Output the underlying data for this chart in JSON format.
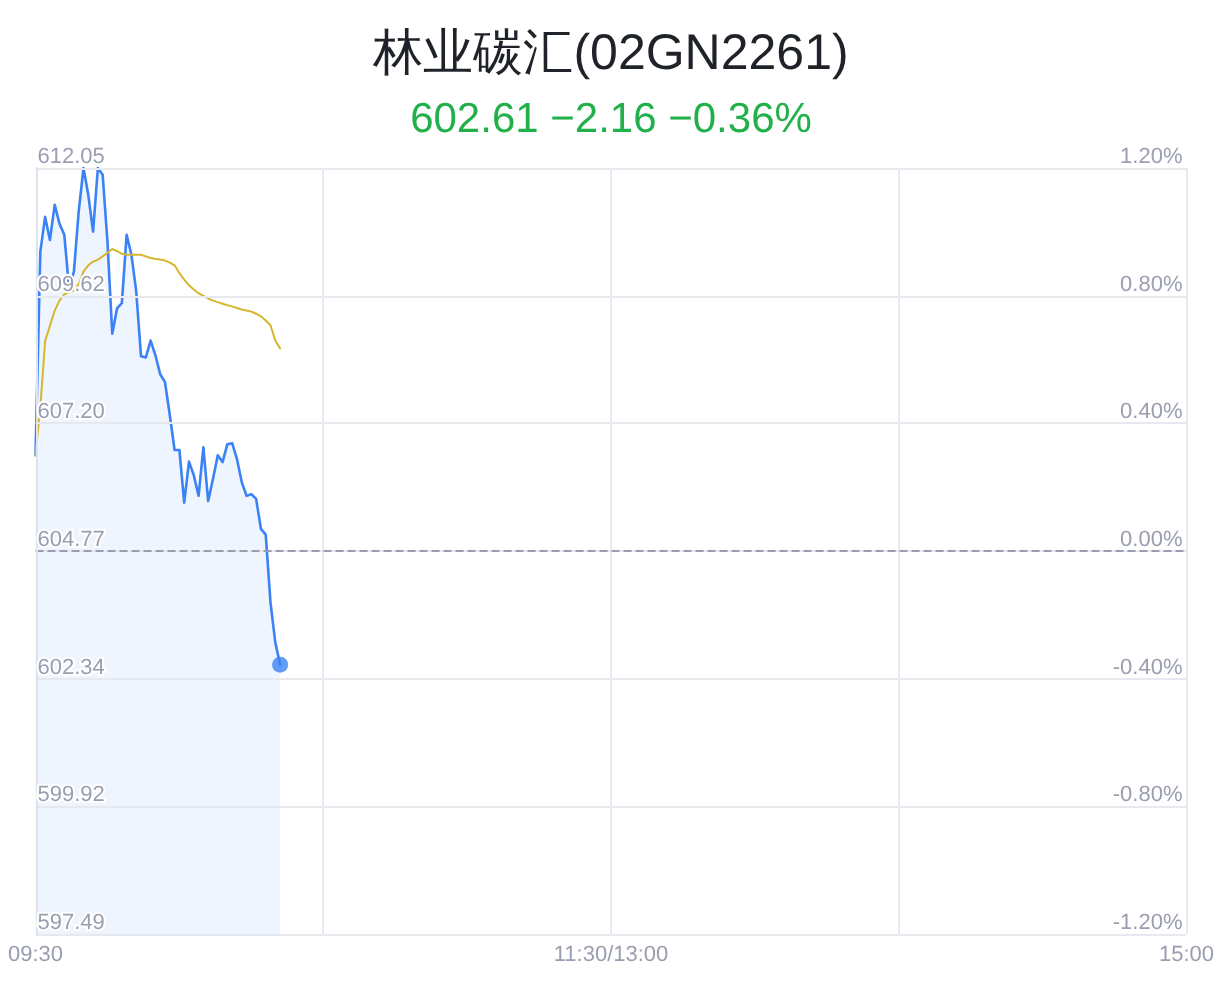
{
  "chart_data": {
    "type": "area",
    "title": "林业碳汇(02GN2261)",
    "subtitle": "602.61 −2.16 −0.36%",
    "categories": [
      "09:30",
      null,
      null,
      null,
      null,
      null,
      null,
      null,
      null,
      null,
      null,
      null,
      null,
      null,
      null,
      null,
      null,
      null,
      null,
      null,
      null,
      null,
      null,
      null,
      null,
      null,
      null,
      null,
      null,
      null,
      null,
      null,
      null,
      null,
      null,
      null,
      null,
      null,
      null,
      null,
      null,
      null,
      null,
      null,
      null,
      null,
      null,
      null,
      null,
      null,
      null,
      null,
      null,
      null,
      null,
      null,
      null,
      null,
      null,
      null,
      null,
      null,
      null,
      null,
      null,
      null,
      null,
      null,
      null,
      null,
      null,
      null,
      null,
      null,
      null,
      null,
      null,
      null,
      null,
      null,
      null,
      null,
      null,
      null,
      null,
      null,
      null,
      null,
      null,
      null,
      null,
      null,
      null,
      null,
      null,
      null,
      null,
      null,
      null,
      null,
      null,
      null,
      null,
      null,
      null,
      null,
      null,
      null,
      null,
      null,
      null,
      null,
      null,
      null,
      null,
      null,
      null,
      null,
      null,
      null,
      "11:30/13:00",
      null,
      null,
      null,
      null,
      null,
      null,
      null,
      null,
      null,
      null,
      null,
      null,
      null,
      null,
      null,
      null,
      null,
      null,
      null,
      null,
      null,
      null,
      null,
      null,
      null,
      null,
      null,
      null,
      null,
      null,
      null,
      null,
      null,
      null,
      null,
      null,
      null,
      null,
      null,
      null,
      null,
      null,
      null,
      null,
      null,
      null,
      null,
      null,
      null,
      null,
      null,
      null,
      null,
      null,
      null,
      null,
      null,
      null,
      null,
      null,
      null,
      null,
      null,
      null,
      null,
      null,
      null,
      null,
      null,
      null,
      null,
      null,
      null,
      null,
      null,
      null,
      null,
      null,
      null,
      null,
      null,
      null,
      null,
      null,
      null,
      null,
      null,
      null,
      null,
      null,
      null,
      null,
      null,
      null,
      null,
      null,
      null,
      null,
      null,
      null,
      null,
      null,
      null,
      null,
      null,
      null,
      null,
      null,
      null,
      null,
      null,
      null,
      null,
      null,
      null,
      null,
      null,
      null,
      null,
      "15:00"
    ],
    "ylim": [
      597.49,
      612.05
    ],
    "yticks": [
      597.49,
      599.92,
      602.34,
      604.77,
      {
        "value": 607.2,
        "label": "607.20"
      },
      609.62,
      612.05
    ],
    "y2lim": [
      -1.2,
      1.2
    ],
    "y2ticks": [
      {
        "value": -1.2,
        "label": "-1.20%"
      },
      {
        "value": -0.8,
        "label": "-0.80%"
      },
      {
        "value": -0.4,
        "label": "-0.40%"
      },
      {
        "value": 0,
        "label": "0.00%"
      },
      {
        "value": 0.4,
        "label": "0.40%"
      },
      {
        "value": 0.8,
        "label": "0.80%"
      },
      {
        "value": 1.2,
        "label": "1.20%"
      }
    ],
    "grid": true,
    "ref_lines": [
      {
        "axis": "y",
        "value": 604.77,
        "color": "#9a9cb0",
        "line_style": "dashed"
      }
    ],
    "series": [
      {
        "color": "#3b82f6",
        "values": [
          606.59,
          610.46,
          611.12,
          610.68,
          611.35,
          610.99,
          610.78,
          609.76,
          610.08,
          611.22,
          612.05,
          611.54,
          610.84,
          612.05,
          611.92,
          610.65,
          608.9,
          609.38,
          609.48,
          610.78,
          610.4,
          609.7,
          608.47,
          608.45,
          608.77,
          608.49,
          608.13,
          607.98,
          607.35,
          606.69,
          606.69,
          605.69,
          606.47,
          606.21,
          605.82,
          606.74,
          605.72,
          606.14,
          606.59,
          606.46,
          606.8,
          606.82,
          606.52,
          606.08,
          605.82,
          605.85,
          605.76,
          605.19,
          605.08,
          603.79,
          603.03,
          602.61,
          null,
          null,
          null,
          null,
          null,
          null,
          null,
          null,
          null,
          null,
          null,
          null,
          null,
          null,
          null,
          null,
          null,
          null,
          null,
          null,
          null,
          null,
          null,
          null,
          null,
          null,
          null,
          null,
          null,
          null,
          null,
          null,
          null,
          null,
          null,
          null,
          null,
          null,
          null,
          null,
          null,
          null,
          null,
          null,
          null,
          null,
          null,
          null,
          null,
          null,
          null,
          null,
          null,
          null,
          null,
          null,
          null,
          null,
          null,
          null,
          null,
          null,
          null,
          null,
          null,
          null,
          null,
          null,
          null,
          null,
          null,
          null,
          null,
          null,
          null,
          null,
          null,
          null,
          null,
          null,
          null,
          null,
          null,
          null,
          null,
          null,
          null,
          null,
          null,
          null,
          null,
          null,
          null,
          null,
          null,
          null,
          null,
          null,
          null,
          null,
          null,
          null,
          null,
          null,
          null,
          null,
          null,
          null,
          null,
          null,
          null,
          null,
          null,
          null,
          null,
          null,
          null,
          null,
          null,
          null,
          null,
          null,
          null,
          null,
          null,
          null,
          null,
          null,
          null,
          null,
          null,
          null,
          null,
          null,
          null,
          null,
          null,
          null,
          null,
          null,
          null,
          null,
          null,
          null,
          null,
          null,
          null,
          null,
          null,
          null,
          null,
          null,
          null,
          null,
          null,
          null,
          null,
          null,
          null,
          null,
          null,
          null,
          null,
          null,
          null,
          null,
          null,
          null,
          null,
          null,
          null,
          null,
          null,
          null,
          null,
          null,
          null,
          null,
          null,
          null,
          null,
          null,
          null,
          null,
          null,
          null,
          null,
          null,
          null
        ]
      },
      {
        "type": "line",
        "color": "#d6b62e",
        "values": [
          606.6,
          607.5,
          608.76,
          609.05,
          609.34,
          609.53,
          609.65,
          609.69,
          609.72,
          609.84,
          610.08,
          610.2,
          610.27,
          610.31,
          610.37,
          610.44,
          610.51,
          610.47,
          610.42,
          610.4,
          610.4,
          610.4,
          610.4,
          610.37,
          610.34,
          610.32,
          610.31,
          610.29,
          610.25,
          610.2,
          610.05,
          609.93,
          609.82,
          609.74,
          609.67,
          609.62,
          609.57,
          609.53,
          609.5,
          609.47,
          609.44,
          609.42,
          609.39,
          609.36,
          609.34,
          609.32,
          609.28,
          609.23,
          609.15,
          609.06,
          608.77,
          608.62,
          null,
          null,
          null,
          null,
          null,
          null,
          null,
          null,
          null,
          null,
          null,
          null,
          null,
          null,
          null,
          null,
          null,
          null,
          null,
          null,
          null,
          null,
          null,
          null,
          null,
          null,
          null,
          null,
          null,
          null,
          null,
          null,
          null,
          null,
          null,
          null,
          null,
          null,
          null,
          null,
          null,
          null,
          null,
          null,
          null,
          null,
          null,
          null,
          null,
          null,
          null,
          null,
          null,
          null,
          null,
          null,
          null,
          null,
          null,
          null,
          null,
          null,
          null,
          null,
          null,
          null,
          null,
          null,
          null,
          null,
          null,
          null,
          null,
          null,
          null,
          null,
          null,
          null,
          null,
          null,
          null,
          null,
          null,
          null,
          null,
          null,
          null,
          null,
          null,
          null,
          null,
          null,
          null,
          null,
          null,
          null,
          null,
          null,
          null,
          null,
          null,
          null,
          null,
          null,
          null,
          null,
          null,
          null,
          null,
          null,
          null,
          null,
          null,
          null,
          null,
          null,
          null,
          null,
          null,
          null,
          null,
          null,
          null,
          null,
          null,
          null,
          null,
          null,
          null,
          null,
          null,
          null,
          null,
          null,
          null,
          null,
          null,
          null,
          null,
          null,
          null,
          null,
          null,
          null,
          null,
          null,
          null,
          null,
          null,
          null,
          null,
          null,
          null,
          null,
          null,
          null,
          null,
          null,
          null,
          null,
          null,
          null,
          null,
          null,
          null,
          null,
          null,
          null,
          null,
          null,
          null,
          null,
          null,
          null,
          null,
          null,
          null,
          null,
          null,
          null,
          null,
          null,
          null,
          null,
          null,
          null,
          null,
          null,
          null
        ]
      },
      {
        "type": "scatter",
        "color": "#3b82f6",
        "marker": "circle",
        "values": [
          null,
          null,
          null,
          null,
          null,
          null,
          null,
          null,
          null,
          null,
          null,
          null,
          null,
          null,
          null,
          null,
          null,
          null,
          null,
          null,
          null,
          null,
          null,
          null,
          null,
          null,
          null,
          null,
          null,
          null,
          null,
          null,
          null,
          null,
          null,
          null,
          null,
          null,
          null,
          null,
          null,
          null,
          null,
          null,
          null,
          null,
          null,
          null,
          null,
          null,
          null,
          602.61,
          null,
          null,
          null,
          null,
          null,
          null,
          null,
          null,
          null,
          null,
          null,
          null,
          null,
          null,
          null,
          null,
          null,
          null,
          null,
          null,
          null,
          null,
          null,
          null,
          null,
          null,
          null,
          null,
          null,
          null,
          null,
          null,
          null,
          null,
          null,
          null,
          null,
          null,
          null,
          null,
          null,
          null,
          null,
          null,
          null,
          null,
          null,
          null,
          null,
          null,
          null,
          null,
          null,
          null,
          null,
          null,
          null,
          null,
          null,
          null,
          null,
          null,
          null,
          null,
          null,
          null,
          null,
          null,
          null,
          null,
          null,
          null,
          null,
          null,
          null,
          null,
          null,
          null,
          null,
          null,
          null,
          null,
          null,
          null,
          null,
          null,
          null,
          null,
          null,
          null,
          null,
          null,
          null,
          null,
          null,
          null,
          null,
          null,
          null,
          null,
          null,
          null,
          null,
          null,
          null,
          null,
          null,
          null,
          null,
          null,
          null,
          null,
          null,
          null,
          null,
          null,
          null,
          null,
          null,
          null,
          null,
          null,
          null,
          null,
          null,
          null,
          null,
          null,
          null,
          null,
          null,
          null,
          null,
          null,
          null,
          null,
          null,
          null,
          null,
          null,
          null,
          null,
          null,
          null,
          null,
          null,
          null,
          null,
          null,
          null,
          null,
          null,
          null,
          null,
          null,
          null,
          null,
          null,
          null,
          null,
          null,
          null,
          null,
          null,
          null,
          null,
          null,
          null,
          null,
          null,
          null,
          null,
          null,
          null,
          null,
          null,
          null,
          null,
          null,
          null,
          null,
          null,
          null,
          null,
          null,
          null,
          null,
          null,
          null
        ]
      }
    ]
  }
}
